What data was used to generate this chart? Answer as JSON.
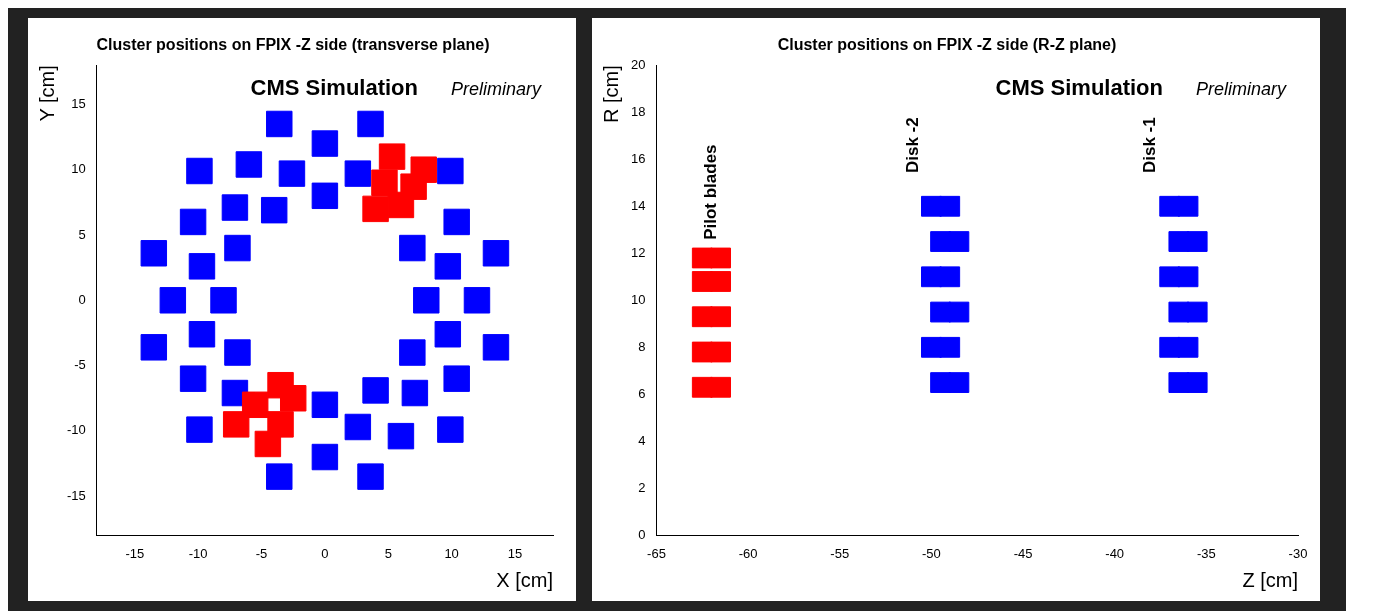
{
  "chart_data": [
    {
      "type": "scatter",
      "title": "Cluster positions on FPIX -Z side (transverse plane)",
      "xlabel": "X [cm]",
      "ylabel": "Y [cm]",
      "xlim": [
        -18,
        18
      ],
      "ylim": [
        -18,
        18
      ],
      "xticks": [
        -15,
        -10,
        -5,
        0,
        5,
        10,
        15
      ],
      "yticks": [
        -15,
        -10,
        -5,
        0,
        5,
        10,
        15
      ],
      "grid": false,
      "legend": false,
      "annotations": [
        "CMS Simulation",
        "Preliminary"
      ],
      "series": [
        {
          "color": "#0000ff",
          "x": [
            8,
            6.9,
            0,
            -4,
            -6.9,
            -8,
            -6.9,
            0,
            4,
            6.9,
            12,
            10.4,
            0,
            -6,
            -10.4,
            -12,
            -10.4,
            0,
            6,
            10.4,
            9.7,
            2.6,
            -2.6,
            -7.1,
            -9.7,
            -9.7,
            -7.1,
            2.6,
            7.1,
            9.7,
            13.5,
            9.9,
            3.6,
            -3.6,
            -9.9,
            -13.5,
            -13.5,
            -9.9,
            -3.6,
            3.6,
            9.9,
            13.5
          ],
          "values": [
            0,
            4,
            8,
            6.9,
            4,
            0,
            -4,
            -8,
            -6.9,
            -4,
            0,
            6,
            12,
            10.4,
            6,
            0,
            -6,
            -12,
            -10.4,
            -6,
            2.6,
            9.7,
            9.7,
            7.1,
            2.6,
            -2.6,
            -7.1,
            -9.7,
            -7.1,
            -2.6,
            3.6,
            9.9,
            13.5,
            13.5,
            9.9,
            3.6,
            -3.6,
            -9.9,
            -13.5,
            -13.5,
            -9.9,
            -3.6
          ]
        },
        {
          "color": "#ff0000",
          "x": [
            4,
            4.7,
            5.3,
            6,
            7,
            7.8,
            -3.5,
            -5.5,
            -7,
            -2.5,
            -3.5,
            -4.5
          ],
          "values": [
            7,
            9,
            11,
            7.3,
            8.7,
            10,
            -6.5,
            -8,
            -9.5,
            -7.5,
            -9.5,
            -11
          ]
        }
      ]
    },
    {
      "type": "scatter",
      "title": "Cluster positions on FPIX -Z side (R-Z plane)",
      "xlabel": "Z [cm]",
      "ylabel": "R [cm]",
      "xlim": [
        -65,
        -30
      ],
      "ylim": [
        0,
        20
      ],
      "xticks": [
        -65,
        -60,
        -55,
        -50,
        -45,
        -40,
        -35,
        -30
      ],
      "yticks": [
        0,
        2,
        4,
        6,
        8,
        10,
        12,
        14,
        16,
        18,
        20
      ],
      "grid": false,
      "legend": false,
      "annotations": [
        "CMS Simulation",
        "Preliminary",
        "Pilot blades",
        "Disk -2",
        "Disk -1"
      ],
      "series": [
        {
          "color": "#ff0000",
          "x": [
            -62.5,
            -61.5,
            -62.5,
            -61.5,
            -62.5,
            -61.5,
            -62.5,
            -61.5,
            -62.5,
            -61.5
          ],
          "values": [
            6.3,
            6.3,
            7.8,
            7.8,
            9.3,
            9.3,
            10.8,
            10.8,
            11.8,
            11.8
          ]
        },
        {
          "color": "#0000ff",
          "x": [
            -49.5,
            -48.5,
            -50,
            -49,
            -49.5,
            -48.5,
            -50,
            -49,
            -49.5,
            -48.5,
            -50,
            -49,
            -36.5,
            -35.5,
            -37,
            -36,
            -36.5,
            -35.5,
            -37,
            -36,
            -36.5,
            -35.5,
            -37,
            -36
          ],
          "values": [
            6.5,
            6.5,
            8,
            8,
            9.5,
            9.5,
            11,
            11,
            12.5,
            12.5,
            14,
            14,
            6.5,
            6.5,
            8,
            8,
            9.5,
            9.5,
            11,
            11,
            12.5,
            12.5,
            14,
            14
          ]
        }
      ]
    }
  ]
}
